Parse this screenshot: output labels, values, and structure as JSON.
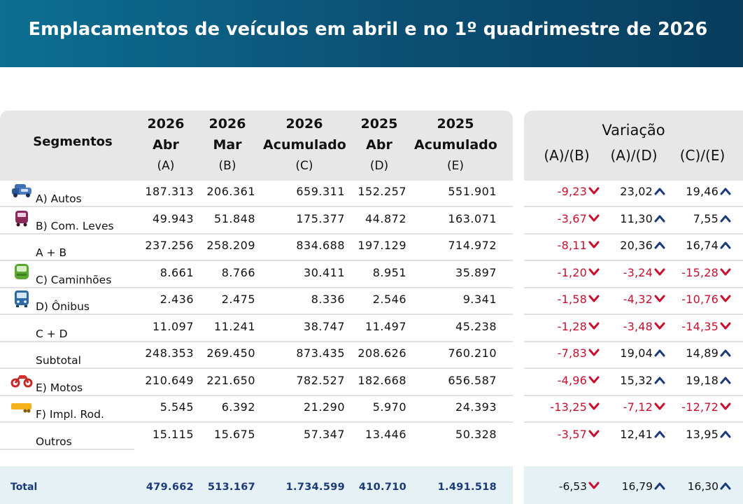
{
  "title": "Emplacamentos de veículos em abril e no 1º quadrimestre de 2026",
  "header": {
    "segments": "Segmentos",
    "columns": [
      {
        "year": "2026",
        "name": "Abr",
        "code": "(A)"
      },
      {
        "year": "2026",
        "name": "Mar",
        "code": "(B)"
      },
      {
        "year": "2026",
        "name": "Acumulado",
        "code": "(C)"
      },
      {
        "year": "2025",
        "name": "Abr",
        "code": "(D)"
      },
      {
        "year": "2025",
        "name": "Acumulado",
        "code": "(E)"
      }
    ],
    "variation_title": "Variação",
    "variation_columns": [
      "(A)/(B)",
      "(A)/(D)",
      "(C)/(E)"
    ]
  },
  "rows": [
    {
      "label": "A) Autos",
      "icon": "car-icon",
      "values": [
        "187.313",
        "206.361",
        "659.311",
        "152.257",
        "551.901"
      ],
      "var": [
        "-9,23",
        "23,02",
        "19,46"
      ],
      "dir": [
        "down",
        "up",
        "up"
      ]
    },
    {
      "label": "B) Com. Leves",
      "icon": "van-icon",
      "values": [
        "49.943",
        "51.848",
        "175.377",
        "44.872",
        "163.071"
      ],
      "var": [
        "-3,67",
        "11,30",
        "7,55"
      ],
      "dir": [
        "down",
        "up",
        "up"
      ]
    },
    {
      "label": "A + B",
      "icon": "",
      "values": [
        "237.256",
        "258.209",
        "834.688",
        "197.129",
        "714.972"
      ],
      "var": [
        "-8,11",
        "20,36",
        "16,74"
      ],
      "dir": [
        "down",
        "up",
        "up"
      ]
    },
    {
      "label": "C) Caminhões",
      "icon": "truck-icon",
      "values": [
        "8.661",
        "8.766",
        "30.411",
        "8.951",
        "35.897"
      ],
      "var": [
        "-1,20",
        "-3,24",
        "-15,28"
      ],
      "dir": [
        "down",
        "down",
        "down"
      ]
    },
    {
      "label": "D) Ônibus",
      "icon": "bus-icon",
      "values": [
        "2.436",
        "2.475",
        "8.336",
        "2.546",
        "9.341"
      ],
      "var": [
        "-1,58",
        "-4,32",
        "-10,76"
      ],
      "dir": [
        "down",
        "down",
        "down"
      ]
    },
    {
      "label": "C + D",
      "icon": "",
      "values": [
        "11.097",
        "11.241",
        "38.747",
        "11.497",
        "45.238"
      ],
      "var": [
        "-1,28",
        "-3,48",
        "-14,35"
      ],
      "dir": [
        "down",
        "down",
        "down"
      ]
    },
    {
      "label": "Subtotal",
      "icon": "",
      "values": [
        "248.353",
        "269.450",
        "873.435",
        "208.626",
        "760.210"
      ],
      "var": [
        "-7,83",
        "19,04",
        "14,89"
      ],
      "dir": [
        "down",
        "up",
        "up"
      ]
    },
    {
      "label": "E) Motos",
      "icon": "motorcycle-icon",
      "values": [
        "210.649",
        "221.650",
        "782.527",
        "182.668",
        "656.587"
      ],
      "var": [
        "-4,96",
        "15,32",
        "19,18"
      ],
      "dir": [
        "down",
        "up",
        "up"
      ]
    },
    {
      "label": "F) Impl. Rod.",
      "icon": "trailer-icon",
      "values": [
        "5.545",
        "6.392",
        "21.290",
        "5.970",
        "24.393"
      ],
      "var": [
        "-13,25",
        "-7,12",
        "-12,72"
      ],
      "dir": [
        "down",
        "down",
        "down"
      ]
    },
    {
      "label": "Outros",
      "icon": "",
      "values": [
        "15.115",
        "15.675",
        "57.347",
        "13.446",
        "50.328"
      ],
      "var": [
        "-3,57",
        "12,41",
        "13,95"
      ],
      "dir": [
        "down",
        "up",
        "up"
      ]
    }
  ],
  "total": {
    "label": "Total",
    "values": [
      "479.662",
      "513.167",
      "1.734.599",
      "410.710",
      "1.491.518"
    ],
    "var": [
      "-6,53",
      "16,79",
      "16,30"
    ],
    "dir": [
      "down",
      "up",
      "up"
    ]
  },
  "colors": {
    "banner": "#0b5a7e",
    "negative": "#c8102e",
    "up_arrow": "#1a3a7a",
    "down_arrow": "#c8102e",
    "total_text": "#1a3a7a"
  }
}
